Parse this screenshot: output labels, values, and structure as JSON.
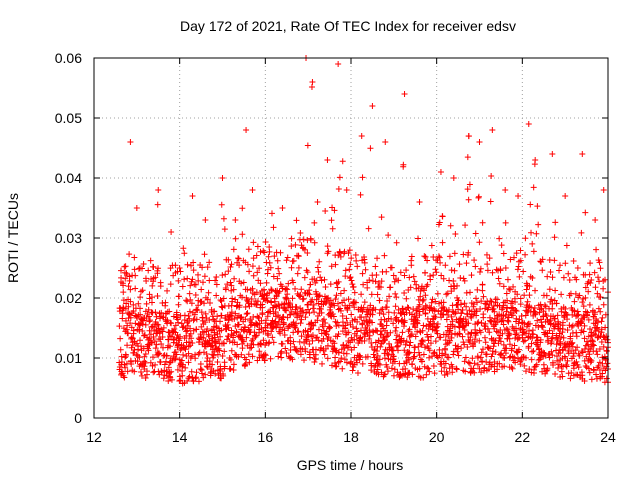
{
  "chart_data": {
    "type": "scatter",
    "title": "Day 172 of 2021, Rate Of TEC Index for receiver edsv",
    "xlabel": "GPS time / hours",
    "ylabel": "ROTI / TECUs",
    "xlim": [
      12,
      24
    ],
    "ylim": [
      0,
      0.06
    ],
    "xticks": [
      12,
      14,
      16,
      18,
      20,
      22,
      24
    ],
    "xtick_labels": [
      "12",
      "14",
      "16",
      "18",
      "20",
      "22",
      "24"
    ],
    "yticks": [
      0,
      0.01,
      0.02,
      0.03,
      0.04,
      0.05,
      0.06
    ],
    "ytick_labels": [
      "0",
      "0.01",
      "0.02",
      "0.03",
      "0.04",
      "0.05",
      "0.06"
    ],
    "grid": true,
    "marker": "+",
    "color": "#ff0000",
    "series": [
      {
        "name": "ROTI",
        "x_start": 12.6,
        "x_end": 24.0,
        "x_step": 0.025,
        "baseline_envelope": [
          [
            12.6,
            0.012
          ],
          [
            13.0,
            0.012
          ],
          [
            14.0,
            0.011
          ],
          [
            15.0,
            0.012
          ],
          [
            15.5,
            0.014
          ],
          [
            16.0,
            0.015
          ],
          [
            17.0,
            0.015
          ],
          [
            18.0,
            0.013
          ],
          [
            19.0,
            0.012
          ],
          [
            20.0,
            0.012
          ],
          [
            21.0,
            0.013
          ],
          [
            22.0,
            0.013
          ],
          [
            23.0,
            0.012
          ],
          [
            24.0,
            0.011
          ]
        ],
        "peaks": [
          [
            12.85,
            0.046
          ],
          [
            13.0,
            0.035
          ],
          [
            13.5,
            0.038
          ],
          [
            13.8,
            0.031
          ],
          [
            14.3,
            0.037
          ],
          [
            14.6,
            0.033
          ],
          [
            15.0,
            0.04
          ],
          [
            15.3,
            0.033
          ],
          [
            15.55,
            0.048
          ],
          [
            15.7,
            0.038
          ],
          [
            16.4,
            0.035
          ],
          [
            16.95,
            0.06
          ],
          [
            17.1,
            0.056
          ],
          [
            17.45,
            0.043
          ],
          [
            17.7,
            0.059
          ],
          [
            17.9,
            0.038
          ],
          [
            18.25,
            0.047
          ],
          [
            18.5,
            0.052
          ],
          [
            18.8,
            0.046
          ],
          [
            19.25,
            0.054
          ],
          [
            19.6,
            0.036
          ],
          [
            20.1,
            0.041
          ],
          [
            20.4,
            0.04
          ],
          [
            20.75,
            0.047
          ],
          [
            21.0,
            0.046
          ],
          [
            21.3,
            0.048
          ],
          [
            21.6,
            0.038
          ],
          [
            21.9,
            0.037
          ],
          [
            22.15,
            0.049
          ],
          [
            22.3,
            0.043
          ],
          [
            22.7,
            0.044
          ],
          [
            23.0,
            0.037
          ],
          [
            23.4,
            0.044
          ],
          [
            23.7,
            0.033
          ],
          [
            23.9,
            0.038
          ]
        ]
      }
    ]
  }
}
